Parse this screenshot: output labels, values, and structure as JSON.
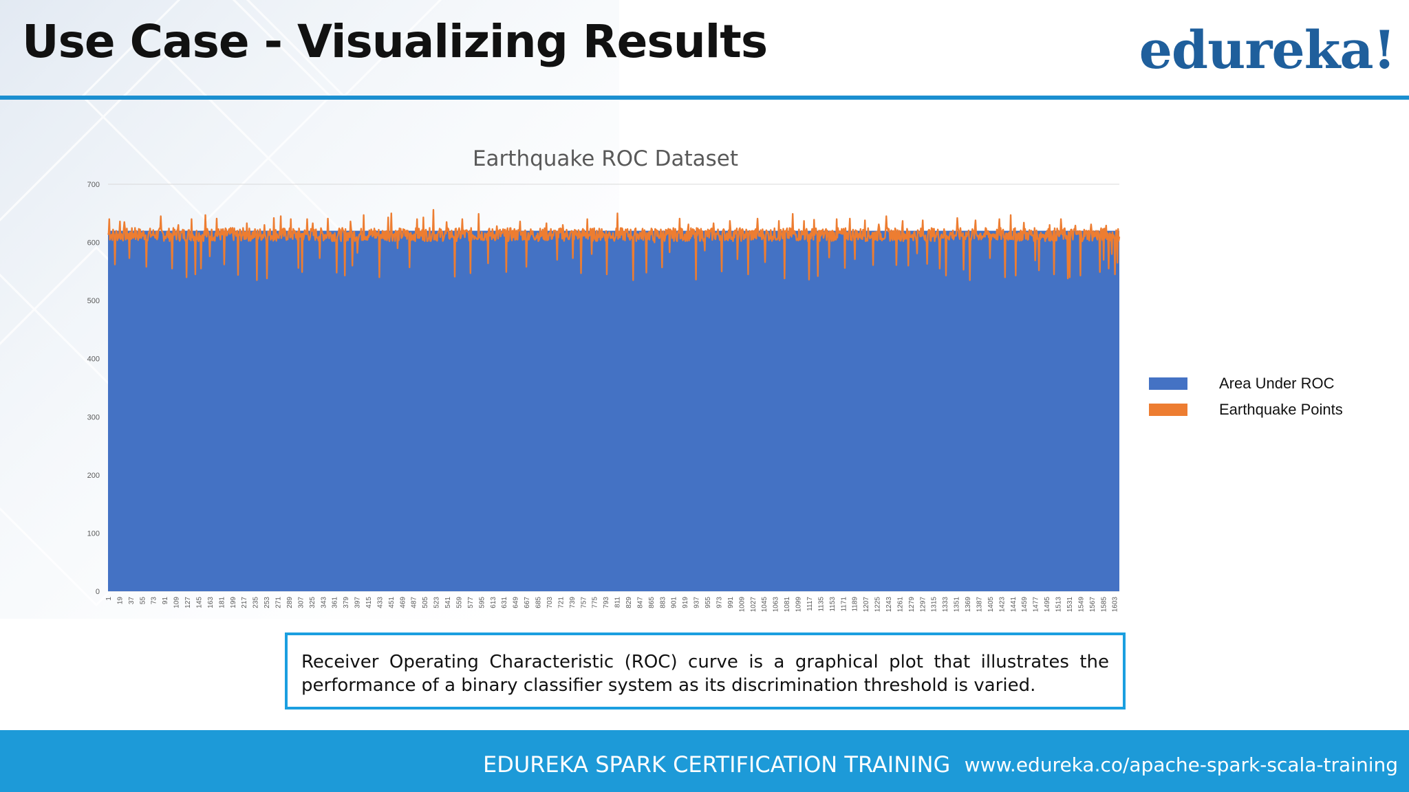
{
  "slide": {
    "title": "Use Case - Visualizing Results",
    "logo_text": "edureka!"
  },
  "description": "Receiver Operating Characteristic (ROC) curve is a graphical plot that illustrates the performance of a binary classifier system as its discrimination threshold is varied.",
  "footer": {
    "course": "EDUREKA SPARK CERTIFICATION TRAINING",
    "url": "www.edureka.co/apache-spark-scala-training"
  },
  "colors": {
    "accent": "#1b8fd0",
    "footer": "#1d9ad8",
    "area": "#4472c4",
    "points": "#ed7d31"
  },
  "chart_data": {
    "type": "area",
    "title": "Earthquake ROC Dataset",
    "xlabel": "",
    "ylabel": "",
    "x_range": [
      1,
      1611
    ],
    "x_ticks": [
      1,
      19,
      37,
      55,
      73,
      91,
      109,
      127,
      145,
      163,
      181,
      199,
      217,
      235,
      253,
      271,
      289,
      307,
      325,
      343,
      361,
      379,
      397,
      415,
      433,
      451,
      469,
      487,
      505,
      523,
      541,
      559,
      577,
      595,
      613,
      631,
      649,
      667,
      685,
      703,
      721,
      739,
      757,
      775,
      793,
      811,
      829,
      847,
      865,
      883,
      901,
      919,
      937,
      955,
      973,
      991,
      1009,
      1027,
      1045,
      1063,
      1081,
      1099,
      1117,
      1135,
      1153,
      1171,
      1189,
      1207,
      1225,
      1243,
      1261,
      1279,
      1297,
      1315,
      1333,
      1351,
      1369,
      1387,
      1405,
      1423,
      1441,
      1459,
      1477,
      1495,
      1513,
      1531,
      1549,
      1567,
      1585,
      1603
    ],
    "ylim": [
      0,
      700
    ],
    "y_ticks": [
      0,
      100,
      200,
      300,
      400,
      500,
      600,
      700
    ],
    "grid": "horizontal",
    "legend": "right",
    "series": [
      {
        "name": "Area Under ROC",
        "kind": "area",
        "color": "#4472c4",
        "x": [
          1,
          1611
        ],
        "values": [
          620,
          620
        ]
      },
      {
        "name": "Earthquake Points",
        "kind": "line",
        "color": "#ed7d31",
        "baseline_range": [
          602,
          625
        ],
        "x": [
          3,
          12,
          20,
          27,
          35,
          44,
          62,
          85,
          103,
          113,
          126,
          134,
          140,
          149,
          156,
          163,
          174,
          186,
          199,
          208,
          222,
          238,
          250,
          254,
          265,
          276,
          292,
          304,
          310,
          318,
          327,
          338,
          351,
          365,
          378,
          387,
          390,
          398,
          408,
          425,
          433,
          447,
          452,
          462,
          481,
          493,
          503,
          519,
          540,
          553,
          565,
          578,
          591,
          606,
          620,
          635,
          657,
          667,
          687,
          699,
          716,
          725,
          741,
          754,
          764,
          771,
          787,
          795,
          812,
          837,
          858,
          871,
          883,
          895,
          911,
          925,
          937,
          951,
          965,
          978,
          991,
          1003,
          1020,
          1035,
          1047,
          1069,
          1078,
          1091,
          1109,
          1117,
          1125,
          1131,
          1149,
          1161,
          1174,
          1182,
          1190,
          1206,
          1219,
          1228,
          1240,
          1256,
          1266,
          1275,
          1289,
          1298,
          1305,
          1325,
          1335,
          1353,
          1363,
          1373,
          1382,
          1405,
          1420,
          1429,
          1438,
          1446,
          1459,
          1477,
          1483,
          1500,
          1507,
          1518,
          1529,
          1532,
          1541,
          1549,
          1566,
          1580,
          1586,
          1590,
          1594,
          1599,
          1604,
          1608
        ],
        "values": [
          640,
          562,
          636,
          635,
          573,
          625,
          558,
          645,
          555,
          630,
          540,
          640,
          545,
          555,
          647,
          576,
          641,
          562,
          625,
          544,
          633,
          535,
          630,
          538,
          642,
          645,
          640,
          556,
          549,
          640,
          633,
          573,
          641,
          548,
          543,
          636,
          560,
          582,
          647,
          624,
          540,
          643,
          650,
          590,
          557,
          640,
          643,
          656,
          635,
          541,
          640,
          547,
          649,
          564,
          628,
          549,
          636,
          558,
          604,
          633,
          570,
          630,
          573,
          547,
          640,
          580,
          623,
          545,
          650,
          535,
          548,
          600,
          557,
          583,
          641,
          631,
          536,
          586,
          633,
          550,
          637,
          571,
          545,
          641,
          566,
          637,
          538,
          649,
          637,
          536,
          639,
          542,
          574,
          640,
          556,
          641,
          571,
          638,
          561,
          631,
          645,
          561,
          637,
          560,
          581,
          638,
          563,
          555,
          543,
          642,
          553,
          535,
          638,
          573,
          640,
          540,
          647,
          543,
          634,
          569,
          552,
          630,
          545,
          640,
          538,
          540,
          629,
          543,
          631,
          549,
          570,
          629,
          555,
          580,
          545,
          565
        ]
      }
    ]
  }
}
